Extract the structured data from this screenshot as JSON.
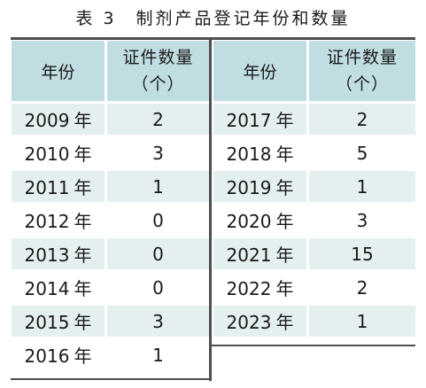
{
  "caption": "表 3　制剂产品登记年份和数量",
  "header": {
    "year": "年份",
    "count_line1": "证件数量",
    "count_line2": "（个）"
  },
  "year_suffix": "年",
  "left_rows": [
    {
      "year": "2009",
      "count": "2"
    },
    {
      "year": "2010",
      "count": "3"
    },
    {
      "year": "2011",
      "count": "1"
    },
    {
      "year": "2012",
      "count": "0"
    },
    {
      "year": "2013",
      "count": "0"
    },
    {
      "year": "2014",
      "count": "0"
    },
    {
      "year": "2015",
      "count": "3"
    },
    {
      "year": "2016",
      "count": "1"
    }
  ],
  "right_rows": [
    {
      "year": "2017",
      "count": "2"
    },
    {
      "year": "2018",
      "count": "5"
    },
    {
      "year": "2019",
      "count": "1"
    },
    {
      "year": "2020",
      "count": "3"
    },
    {
      "year": "2021",
      "count": "15"
    },
    {
      "year": "2022",
      "count": "2"
    },
    {
      "year": "2023",
      "count": "1"
    }
  ],
  "colors": {
    "header_bg": "#c0dde2",
    "stripe_bg": "#e4eff0",
    "rule": "#4d4d4d"
  }
}
